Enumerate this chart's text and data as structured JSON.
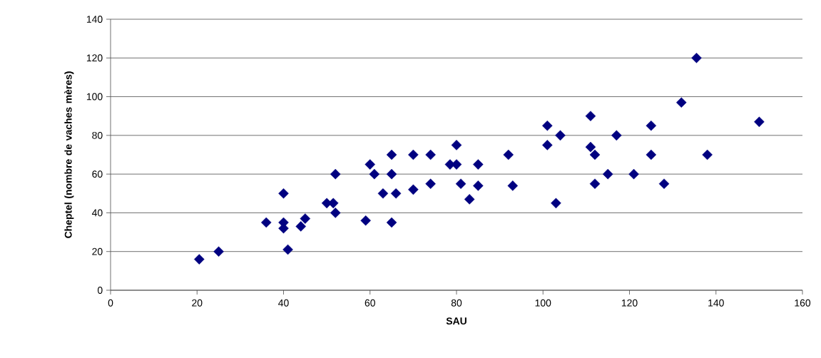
{
  "chart_data": {
    "type": "scatter",
    "xlabel": "SAU",
    "ylabel": "Cheptel (nombre de vaches mères)",
    "x": [
      20.5,
      25,
      36,
      40,
      40,
      40,
      41,
      44,
      45,
      50,
      51.5,
      52,
      52,
      59,
      60,
      61,
      63,
      65,
      65,
      65,
      66,
      70,
      70,
      74,
      74,
      78.5,
      80,
      80,
      81,
      83,
      85,
      85,
      92,
      93,
      101,
      101,
      103,
      104,
      111,
      111,
      112,
      112,
      115,
      117,
      121,
      125,
      125,
      128,
      132,
      135.5,
      138,
      150
    ],
    "values": [
      16,
      20,
      35,
      50,
      35,
      32,
      21,
      33,
      37,
      45,
      45,
      60,
      40,
      36,
      65,
      60,
      50,
      70,
      60,
      35,
      50,
      70,
      52,
      70,
      55,
      65,
      75,
      65,
      55,
      47,
      65,
      54,
      70,
      54,
      85,
      75,
      45,
      80,
      90,
      74,
      70,
      55,
      60,
      80,
      60,
      85,
      70,
      55,
      97,
      120,
      70,
      87
    ],
    "color": "#000080",
    "marker": "diamond",
    "xlim": [
      0,
      160
    ],
    "xticks": [
      0,
      20,
      40,
      60,
      80,
      100,
      120,
      140,
      160
    ],
    "ylim": [
      0,
      140
    ],
    "yticks": [
      0,
      20,
      40,
      60,
      80,
      100,
      120,
      140
    ],
    "grid": "y"
  }
}
